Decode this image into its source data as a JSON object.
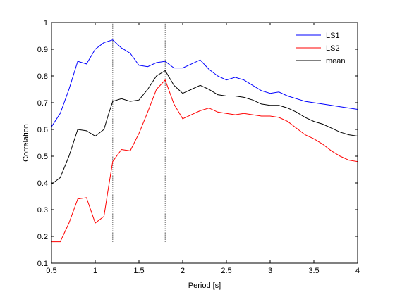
{
  "chart_data": {
    "type": "line",
    "title": "",
    "xlabel": "Period [s]",
    "ylabel": "Correlation",
    "xlim": [
      0.5,
      4
    ],
    "ylim": [
      0.1,
      1
    ],
    "xticks": [
      0.5,
      1,
      1.5,
      2,
      2.5,
      3,
      3.5,
      4
    ],
    "xtick_labels": [
      "0.5",
      "1",
      "1.5",
      "2",
      "2.5",
      "3",
      "3.5",
      "4"
    ],
    "yticks": [
      0.1,
      0.2,
      0.3,
      0.4,
      0.5,
      0.6,
      0.7,
      0.8,
      0.9,
      1
    ],
    "ytick_labels": [
      "0.1",
      "0.2",
      "0.3",
      "0.4",
      "0.5",
      "0.6",
      "0.7",
      "0.8",
      "0.9",
      "1"
    ],
    "grid": false,
    "legend_position": "top-right",
    "vertical_lines": [
      1.2,
      1.8
    ],
    "x": [
      0.5,
      0.6,
      0.7,
      0.8,
      0.9,
      1.0,
      1.1,
      1.15,
      1.2,
      1.3,
      1.4,
      1.5,
      1.6,
      1.7,
      1.8,
      1.9,
      2.0,
      2.1,
      2.2,
      2.3,
      2.4,
      2.5,
      2.6,
      2.7,
      2.8,
      2.9,
      3.0,
      3.1,
      3.2,
      3.3,
      3.4,
      3.5,
      3.6,
      3.7,
      3.8,
      3.9,
      4.0
    ],
    "series": [
      {
        "name": "LS1",
        "color": "#0000ff",
        "values": [
          0.61,
          0.66,
          0.75,
          0.855,
          0.845,
          0.9,
          0.925,
          0.93,
          0.935,
          0.905,
          0.885,
          0.84,
          0.835,
          0.85,
          0.855,
          0.83,
          0.83,
          0.845,
          0.86,
          0.825,
          0.8,
          0.785,
          0.795,
          0.785,
          0.765,
          0.745,
          0.735,
          0.74,
          0.725,
          0.715,
          0.705,
          0.7,
          0.695,
          0.69,
          0.685,
          0.68,
          0.675
        ]
      },
      {
        "name": "LS2",
        "color": "#ff0000",
        "values": [
          0.18,
          0.18,
          0.25,
          0.34,
          0.345,
          0.25,
          0.275,
          0.38,
          0.48,
          0.525,
          0.52,
          0.585,
          0.665,
          0.75,
          0.785,
          0.695,
          0.64,
          0.655,
          0.67,
          0.68,
          0.665,
          0.66,
          0.655,
          0.66,
          0.655,
          0.65,
          0.65,
          0.645,
          0.63,
          0.605,
          0.58,
          0.565,
          0.545,
          0.52,
          0.5,
          0.485,
          0.48
        ]
      },
      {
        "name": "mean",
        "color": "#000000",
        "values": [
          0.395,
          0.42,
          0.5,
          0.6,
          0.595,
          0.575,
          0.6,
          0.655,
          0.705,
          0.715,
          0.705,
          0.71,
          0.75,
          0.8,
          0.82,
          0.765,
          0.735,
          0.75,
          0.765,
          0.75,
          0.73,
          0.725,
          0.725,
          0.72,
          0.71,
          0.695,
          0.69,
          0.69,
          0.68,
          0.665,
          0.645,
          0.63,
          0.62,
          0.605,
          0.59,
          0.58,
          0.575
        ]
      }
    ]
  }
}
